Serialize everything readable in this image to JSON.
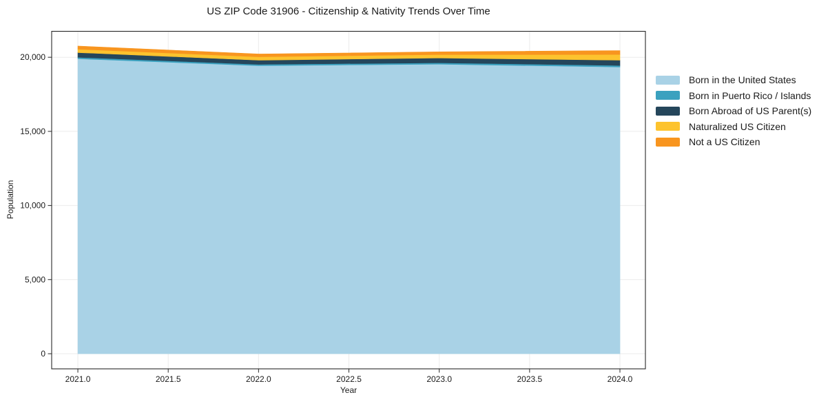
{
  "chart": {
    "title": "US ZIP Code 31906 - Citizenship & Nativity Trends Over Time",
    "xlabel": "Year",
    "ylabel": "Population"
  },
  "chart_data": {
    "type": "area",
    "stacked": true,
    "title": "US ZIP Code 31906 - Citizenship & Nativity Trends Over Time",
    "xlabel": "Year",
    "ylabel": "Population",
    "x": [
      2021,
      2022,
      2023,
      2024
    ],
    "series": [
      {
        "name": "Born in the United States",
        "color": "#a9d2e6",
        "values": [
          19900,
          19430,
          19530,
          19340
        ]
      },
      {
        "name": "Born in Puerto Rico / Islands",
        "color": "#3ba1bf",
        "values": [
          95,
          90,
          95,
          105
        ]
      },
      {
        "name": "Born Abroad of US Parent(s)",
        "color": "#25465b",
        "values": [
          320,
          280,
          325,
          355
        ]
      },
      {
        "name": "Naturalized US Citizen",
        "color": "#fdc32e",
        "values": [
          230,
          230,
          230,
          385
        ]
      },
      {
        "name": "Not a US Citizen",
        "color": "#f8951f",
        "values": [
          210,
          190,
          185,
          265
        ]
      }
    ],
    "xticks": {
      "values": [
        2021.0,
        2021.5,
        2022.0,
        2022.5,
        2023.0,
        2023.5,
        2024.0
      ],
      "labels": [
        "2021.0",
        "2021.5",
        "2022.0",
        "2022.5",
        "2023.0",
        "2023.5",
        "2024.0"
      ]
    },
    "yticks": {
      "values": [
        0,
        5000,
        10000,
        15000,
        20000
      ],
      "labels": [
        "0",
        "5,000",
        "10,000",
        "15,000",
        "20,000"
      ]
    },
    "xlim": [
      2020.855,
      2024.141
    ],
    "ylim": [
      -1020,
      21750
    ],
    "grid": true,
    "legend_position": "right"
  },
  "colors": {
    "background": "#ffffff",
    "grid": "#ebebeb",
    "spine": "#262626",
    "text": "#1a1a1a"
  }
}
